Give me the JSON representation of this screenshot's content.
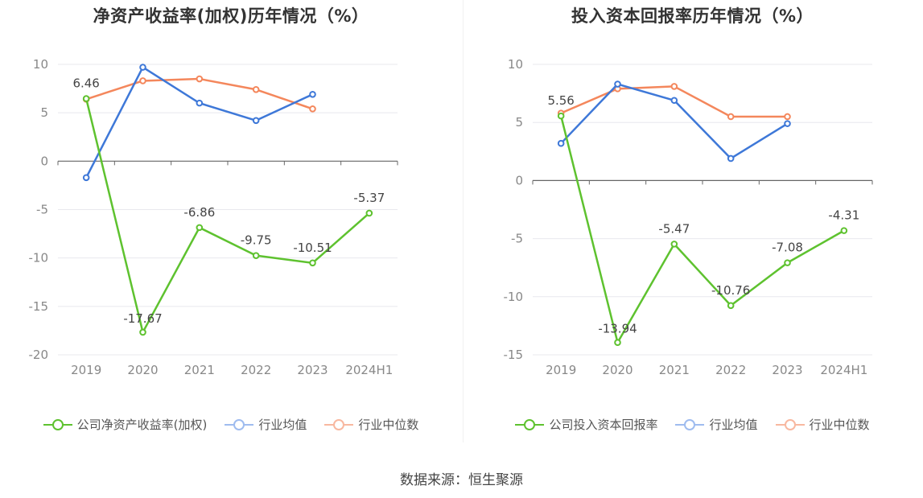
{
  "source_text": "数据来源：恒生聚源",
  "colors": {
    "company": "#5ec22f",
    "avg": "#3e78d8",
    "median": "#f4875c",
    "grid": "#e8e8ee",
    "axis": "#666666",
    "tick_text": "#888888"
  },
  "chart_data": [
    {
      "type": "line",
      "title": "净资产收益率(加权)历年情况（%）",
      "xlabel": "",
      "ylabel": "",
      "categories": [
        "2019",
        "2020",
        "2021",
        "2022",
        "2023",
        "2024H1"
      ],
      "ylim": [
        -20,
        10
      ],
      "yticks": [
        10,
        5,
        0,
        -5,
        -10,
        -15,
        -20
      ],
      "y_tick_labels": [
        "10",
        "5",
        "0",
        "-5",
        "-10",
        "-15",
        "-20"
      ],
      "legend_position": "bottom",
      "series": [
        {
          "name": "公司净资产收益率(加权)",
          "key": "company",
          "values": [
            6.46,
            -17.67,
            -6.86,
            -9.75,
            -10.51,
            -5.37
          ],
          "labels": [
            "6.46",
            "-17.67",
            "-6.86",
            "-9.75",
            "-10.51",
            "-5.37"
          ]
        },
        {
          "name": "行业均值",
          "key": "avg",
          "values": [
            -1.7,
            9.7,
            6.0,
            4.2,
            6.9,
            null
          ]
        },
        {
          "name": "行业中位数",
          "key": "median",
          "values": [
            6.4,
            8.3,
            8.5,
            7.4,
            5.4,
            null
          ]
        }
      ]
    },
    {
      "type": "line",
      "title": "投入资本回报率历年情况（%）",
      "xlabel": "",
      "ylabel": "",
      "categories": [
        "2019",
        "2020",
        "2021",
        "2022",
        "2023",
        "2024H1"
      ],
      "ylim": [
        -15,
        10
      ],
      "yticks": [
        10,
        5,
        0,
        -5,
        -10,
        -15
      ],
      "y_tick_labels": [
        "10",
        "5",
        "0",
        "-5",
        "-10",
        "-15"
      ],
      "legend_position": "bottom",
      "series": [
        {
          "name": "公司投入资本回报率",
          "key": "company",
          "values": [
            5.56,
            -13.94,
            -5.47,
            -10.76,
            -7.08,
            -4.31
          ],
          "labels": [
            "5.56",
            "-13.94",
            "-5.47",
            "-10.76",
            "-7.08",
            "-4.31"
          ]
        },
        {
          "name": "行业均值",
          "key": "avg",
          "values": [
            3.2,
            8.3,
            6.9,
            1.9,
            4.9,
            null
          ]
        },
        {
          "name": "行业中位数",
          "key": "median",
          "values": [
            5.8,
            7.9,
            8.1,
            5.5,
            5.5,
            null
          ]
        }
      ]
    }
  ]
}
